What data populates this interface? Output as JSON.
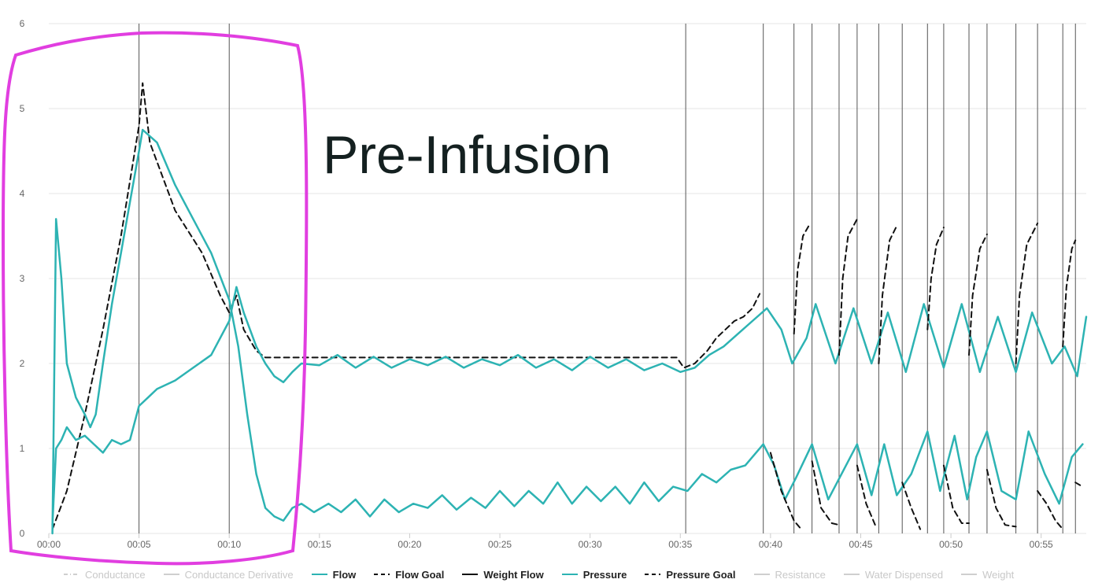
{
  "colors": {
    "teal": "#2db3b3",
    "goal": "#111111",
    "grid": "#e6e6e6",
    "marker": "#555555",
    "highlight": "#e13ee0",
    "hidden": "#cfcfcf"
  },
  "annotation": "Pre-Infusion",
  "legend": [
    {
      "label": "Conductance",
      "style": "dash-dot",
      "hidden": true
    },
    {
      "label": "Conductance Derivative",
      "style": "solid",
      "hidden": true
    },
    {
      "label": "Flow",
      "style": "solid",
      "hidden": false,
      "color": "teal"
    },
    {
      "label": "Flow Goal",
      "style": "dashed",
      "hidden": false,
      "color": "goal"
    },
    {
      "label": "Weight Flow",
      "style": "solid",
      "hidden": false,
      "color": "goal"
    },
    {
      "label": "Pressure",
      "style": "solid",
      "hidden": false,
      "color": "teal"
    },
    {
      "label": "Pressure Goal",
      "style": "dashed",
      "hidden": false,
      "color": "goal"
    },
    {
      "label": "Resistance",
      "style": "solid",
      "hidden": true
    },
    {
      "label": "Water Dispensed",
      "style": "solid",
      "hidden": true
    },
    {
      "label": "Weight",
      "style": "solid",
      "hidden": true
    }
  ],
  "chart_data": {
    "type": "line",
    "title": "",
    "xlabel": "",
    "ylabel": "",
    "grid": true,
    "legend_position": "bottom",
    "xlim": [
      0,
      57.5
    ],
    "ylim": [
      0,
      6
    ],
    "x_ticks": [
      "00:00",
      "00:05",
      "00:10",
      "00:15",
      "00:20",
      "00:25",
      "00:30",
      "00:35",
      "00:40",
      "00:45",
      "00:50",
      "00:55"
    ],
    "y_ticks": [
      "0",
      "1",
      "2",
      "3",
      "4",
      "5",
      "6"
    ],
    "phase_markers_s": [
      5.0,
      10.0,
      35.3,
      39.6,
      41.3,
      42.3,
      43.8,
      44.8,
      46.0,
      47.3,
      48.7,
      49.6,
      51.0,
      52.0,
      53.6,
      54.8,
      56.2,
      56.9
    ],
    "series": [
      {
        "name": "Flow Goal",
        "style": "dashed",
        "points": [
          [
            0.2,
            0.05
          ],
          [
            1.0,
            0.5
          ],
          [
            2.0,
            1.4
          ],
          [
            3.0,
            2.4
          ],
          [
            4.0,
            3.5
          ],
          [
            5.0,
            4.8
          ],
          [
            5.2,
            5.3
          ],
          [
            5.6,
            4.6
          ],
          [
            7.0,
            3.8
          ],
          [
            8.5,
            3.3
          ],
          [
            9.5,
            2.8
          ],
          [
            10.0,
            2.6
          ],
          [
            10.4,
            2.8
          ],
          [
            10.8,
            2.4
          ],
          [
            11.5,
            2.15
          ],
          [
            12.0,
            2.07
          ],
          [
            15,
            2.07
          ],
          [
            20,
            2.07
          ],
          [
            25,
            2.07
          ],
          [
            30,
            2.07
          ],
          [
            34.8,
            2.07
          ],
          [
            35.2,
            1.95
          ],
          [
            35.8,
            2.0
          ],
          [
            36.5,
            2.15
          ],
          [
            37.0,
            2.3
          ],
          [
            37.5,
            2.4
          ],
          [
            38.0,
            2.5
          ],
          [
            38.5,
            2.55
          ],
          [
            39.0,
            2.65
          ],
          [
            39.4,
            2.82
          ]
        ]
      },
      {
        "name": "Pressure",
        "style": "solid",
        "points": [
          [
            0.2,
            0.0
          ],
          [
            0.4,
            3.7
          ],
          [
            0.7,
            3.0
          ],
          [
            1.0,
            2.0
          ],
          [
            1.5,
            1.6
          ],
          [
            2.0,
            1.4
          ],
          [
            2.3,
            1.25
          ],
          [
            2.6,
            1.4
          ],
          [
            3.0,
            2.0
          ],
          [
            3.5,
            2.7
          ],
          [
            4.0,
            3.3
          ],
          [
            4.5,
            3.9
          ],
          [
            5.0,
            4.5
          ],
          [
            5.2,
            4.75
          ],
          [
            6.0,
            4.6
          ],
          [
            7.0,
            4.1
          ],
          [
            8.0,
            3.7
          ],
          [
            9.0,
            3.3
          ],
          [
            10.0,
            2.75
          ],
          [
            10.5,
            2.2
          ],
          [
            11.0,
            1.4
          ],
          [
            11.5,
            0.7
          ],
          [
            12.0,
            0.3
          ],
          [
            12.5,
            0.2
          ],
          [
            13.0,
            0.15
          ],
          [
            13.5,
            0.3
          ],
          [
            14,
            0.35
          ],
          [
            14.7,
            0.25
          ],
          [
            15.5,
            0.35
          ],
          [
            16.2,
            0.25
          ],
          [
            17,
            0.4
          ],
          [
            17.8,
            0.2
          ],
          [
            18.6,
            0.4
          ],
          [
            19.4,
            0.25
          ],
          [
            20.2,
            0.35
          ],
          [
            21,
            0.3
          ],
          [
            21.8,
            0.45
          ],
          [
            22.6,
            0.28
          ],
          [
            23.4,
            0.42
          ],
          [
            24.2,
            0.3
          ],
          [
            25,
            0.5
          ],
          [
            25.8,
            0.32
          ],
          [
            26.6,
            0.5
          ],
          [
            27.4,
            0.35
          ],
          [
            28.2,
            0.6
          ],
          [
            29,
            0.35
          ],
          [
            29.8,
            0.55
          ],
          [
            30.6,
            0.38
          ],
          [
            31.4,
            0.55
          ],
          [
            32.2,
            0.35
          ],
          [
            33,
            0.6
          ],
          [
            33.8,
            0.38
          ],
          [
            34.6,
            0.55
          ],
          [
            35.4,
            0.5
          ],
          [
            36.2,
            0.7
          ],
          [
            37,
            0.6
          ],
          [
            37.8,
            0.75
          ],
          [
            38.6,
            0.8
          ],
          [
            39.6,
            1.05
          ],
          [
            40.2,
            0.8
          ],
          [
            40.8,
            0.4
          ],
          [
            41.4,
            0.65
          ],
          [
            42.3,
            1.05
          ],
          [
            43.2,
            0.4
          ],
          [
            44.8,
            1.05
          ],
          [
            45.6,
            0.45
          ],
          [
            46.3,
            1.05
          ],
          [
            47.0,
            0.45
          ],
          [
            47.8,
            0.7
          ],
          [
            48.7,
            1.2
          ],
          [
            49.4,
            0.5
          ],
          [
            50.2,
            1.15
          ],
          [
            50.9,
            0.4
          ],
          [
            51.4,
            0.9
          ],
          [
            52.0,
            1.2
          ],
          [
            52.8,
            0.5
          ],
          [
            53.6,
            0.4
          ],
          [
            54.3,
            1.2
          ],
          [
            55.2,
            0.7
          ],
          [
            56.0,
            0.35
          ],
          [
            56.7,
            0.9
          ],
          [
            57.3,
            1.05
          ]
        ]
      },
      {
        "name": "Flow",
        "style": "solid",
        "points": [
          [
            0.2,
            0.1
          ],
          [
            0.4,
            1.0
          ],
          [
            0.7,
            1.1
          ],
          [
            1.0,
            1.25
          ],
          [
            1.5,
            1.1
          ],
          [
            2.0,
            1.15
          ],
          [
            2.5,
            1.05
          ],
          [
            3.0,
            0.95
          ],
          [
            3.5,
            1.1
          ],
          [
            4.0,
            1.05
          ],
          [
            4.5,
            1.1
          ],
          [
            5.0,
            1.5
          ],
          [
            5.5,
            1.6
          ],
          [
            6.0,
            1.7
          ],
          [
            7.0,
            1.8
          ],
          [
            8.0,
            1.95
          ],
          [
            9.0,
            2.1
          ],
          [
            10.0,
            2.5
          ],
          [
            10.4,
            2.9
          ],
          [
            10.8,
            2.6
          ],
          [
            11.5,
            2.2
          ],
          [
            12.0,
            2.0
          ],
          [
            12.5,
            1.85
          ],
          [
            13.0,
            1.78
          ],
          [
            13.5,
            1.9
          ],
          [
            14.0,
            2.0
          ],
          [
            15,
            1.98
          ],
          [
            16,
            2.1
          ],
          [
            17,
            1.95
          ],
          [
            18,
            2.08
          ],
          [
            19,
            1.95
          ],
          [
            20,
            2.05
          ],
          [
            21,
            1.98
          ],
          [
            22,
            2.08
          ],
          [
            23,
            1.95
          ],
          [
            24,
            2.05
          ],
          [
            25,
            1.98
          ],
          [
            26,
            2.1
          ],
          [
            27,
            1.95
          ],
          [
            28,
            2.05
          ],
          [
            29,
            1.92
          ],
          [
            30,
            2.08
          ],
          [
            31,
            1.95
          ],
          [
            32,
            2.05
          ],
          [
            33,
            1.92
          ],
          [
            34,
            2.0
          ],
          [
            35,
            1.9
          ],
          [
            35.8,
            1.95
          ],
          [
            36.6,
            2.1
          ],
          [
            37.4,
            2.2
          ],
          [
            38.2,
            2.35
          ],
          [
            39.0,
            2.5
          ],
          [
            39.8,
            2.65
          ],
          [
            40.6,
            2.4
          ],
          [
            41.2,
            2.0
          ],
          [
            42.0,
            2.3
          ],
          [
            42.5,
            2.7
          ],
          [
            43.6,
            2.0
          ],
          [
            44.6,
            2.65
          ],
          [
            45.6,
            2.0
          ],
          [
            46.5,
            2.6
          ],
          [
            47.5,
            1.9
          ],
          [
            48.5,
            2.7
          ],
          [
            49.6,
            1.95
          ],
          [
            50.6,
            2.7
          ],
          [
            51.6,
            1.9
          ],
          [
            52.6,
            2.55
          ],
          [
            53.6,
            1.9
          ],
          [
            54.5,
            2.6
          ],
          [
            55.6,
            2.0
          ],
          [
            56.3,
            2.2
          ],
          [
            57.0,
            1.85
          ],
          [
            57.5,
            2.55
          ]
        ]
      },
      {
        "name": "Pressure Goal",
        "style": "dashed",
        "segments": [
          [
            [
              40.0,
              0.95
            ],
            [
              40.6,
              0.5
            ],
            [
              41.3,
              0.15
            ],
            [
              41.7,
              0.05
            ]
          ],
          [
            [
              42.3,
              0.85
            ],
            [
              42.8,
              0.3
            ],
            [
              43.4,
              0.12
            ],
            [
              43.8,
              0.1
            ]
          ],
          [
            [
              44.8,
              0.8
            ],
            [
              45.3,
              0.35
            ],
            [
              45.8,
              0.1
            ],
            [
              46.0,
              0.1
            ]
          ],
          [
            [
              47.3,
              0.6
            ],
            [
              47.8,
              0.3
            ],
            [
              48.3,
              0.05
            ]
          ],
          [
            [
              49.6,
              0.8
            ],
            [
              50.1,
              0.3
            ],
            [
              50.6,
              0.12
            ],
            [
              51.0,
              0.12
            ]
          ],
          [
            [
              52.0,
              0.75
            ],
            [
              52.5,
              0.3
            ],
            [
              53.0,
              0.1
            ],
            [
              53.6,
              0.08
            ]
          ],
          [
            [
              54.8,
              0.5
            ],
            [
              55.3,
              0.35
            ],
            [
              55.8,
              0.15
            ],
            [
              56.2,
              0.05
            ]
          ],
          [
            [
              56.9,
              0.6
            ],
            [
              57.3,
              0.55
            ]
          ]
        ]
      },
      {
        "name": "Flow Goal (cycles)",
        "style": "dashed",
        "segments": [
          [
            [
              41.3,
              2.35
            ],
            [
              41.5,
              3.1
            ],
            [
              41.8,
              3.5
            ],
            [
              42.2,
              3.65
            ]
          ],
          [
            [
              43.8,
              2.1
            ],
            [
              44.0,
              3.0
            ],
            [
              44.3,
              3.5
            ],
            [
              44.8,
              3.7
            ]
          ],
          [
            [
              46.0,
              2.0
            ],
            [
              46.2,
              2.8
            ],
            [
              46.6,
              3.45
            ],
            [
              47.0,
              3.62
            ]
          ],
          [
            [
              48.7,
              2.4
            ],
            [
              48.9,
              3.0
            ],
            [
              49.2,
              3.4
            ],
            [
              49.6,
              3.6
            ]
          ],
          [
            [
              51.0,
              2.1
            ],
            [
              51.2,
              2.8
            ],
            [
              51.6,
              3.35
            ],
            [
              52.0,
              3.52
            ]
          ],
          [
            [
              53.6,
              2.0
            ],
            [
              53.8,
              2.8
            ],
            [
              54.2,
              3.4
            ],
            [
              54.8,
              3.65
            ]
          ],
          [
            [
              56.2,
              2.2
            ],
            [
              56.4,
              2.9
            ],
            [
              56.7,
              3.35
            ],
            [
              56.9,
              3.45
            ]
          ]
        ]
      }
    ]
  }
}
